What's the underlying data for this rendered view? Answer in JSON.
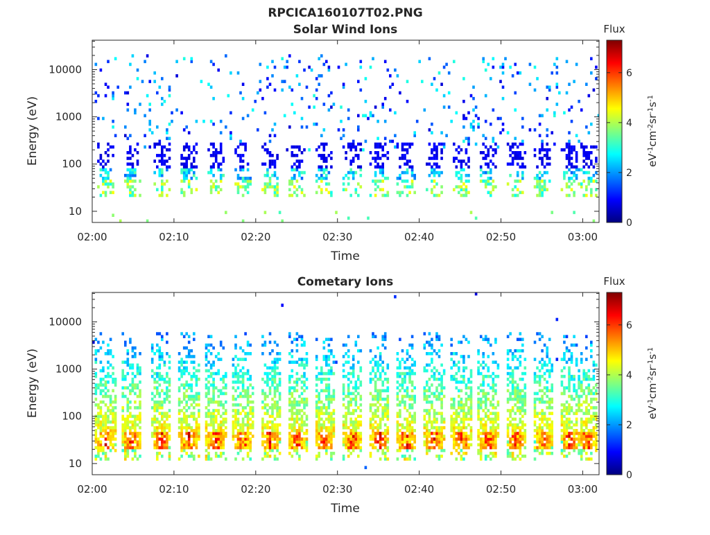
{
  "figure": {
    "filename": "RPCICA160107T02.PNG"
  },
  "chart_data": [
    {
      "type": "heatmap",
      "title": "Solar Wind Ions",
      "xlabel": "Time",
      "ylabel": "Energy (eV)",
      "x_ticks": [
        "02:00",
        "02:10",
        "02:20",
        "02:30",
        "02:40",
        "02:50",
        "03:00"
      ],
      "x_range": [
        "02:00",
        "03:02"
      ],
      "y_scale": "log",
      "y_ticks": [
        "10",
        "100",
        "1000",
        "10000"
      ],
      "y_range": [
        5.8,
        42000
      ],
      "colorbar": {
        "title": "Flux",
        "label": "eV-1cm-2sr-1s-1",
        "range": [
          0,
          7.3
        ],
        "ticks": [
          "0",
          "2",
          "4",
          "6"
        ],
        "colormap": "jet"
      },
      "features": {
        "pulse_times_min": [
          1.5,
          4.7,
          8.3,
          11.7,
          15.0,
          18.3,
          21.7,
          25.0,
          28.3,
          31.7,
          35.0,
          38.3,
          41.7,
          45.0,
          48.3,
          51.7,
          55.0,
          58.3,
          60.5
        ],
        "core_energy_eV": [
          20,
          300
        ],
        "core_flux": 2.2,
        "background_energy_eV": [
          200,
          20000
        ],
        "background_flux": 2.0
      }
    },
    {
      "type": "heatmap",
      "title": "Cometary Ions",
      "xlabel": "Time",
      "ylabel": "Energy (eV)",
      "x_ticks": [
        "02:00",
        "02:10",
        "02:20",
        "02:30",
        "02:40",
        "02:50",
        "03:00"
      ],
      "x_range": [
        "02:00",
        "03:02"
      ],
      "y_scale": "log",
      "y_ticks": [
        "10",
        "100",
        "1000",
        "10000"
      ],
      "y_range": [
        5.8,
        42000
      ],
      "colorbar": {
        "title": "Flux",
        "label": "eV-1cm-2sr-1s-1",
        "range": [
          0,
          7.3
        ],
        "ticks": [
          "0",
          "2",
          "4",
          "6"
        ],
        "colormap": "jet"
      },
      "features": {
        "pulse_times_min": [
          1.5,
          4.7,
          8.3,
          11.7,
          15.0,
          18.3,
          21.7,
          25.0,
          28.3,
          31.7,
          35.0,
          38.3,
          41.7,
          45.0,
          48.3,
          51.7,
          55.0,
          58.3,
          60.5
        ],
        "peak_energy_eV": 30,
        "peak_flux": 6.5,
        "spray_energy_eV": [
          30,
          6000
        ],
        "spray_flux": 3.0
      }
    }
  ]
}
